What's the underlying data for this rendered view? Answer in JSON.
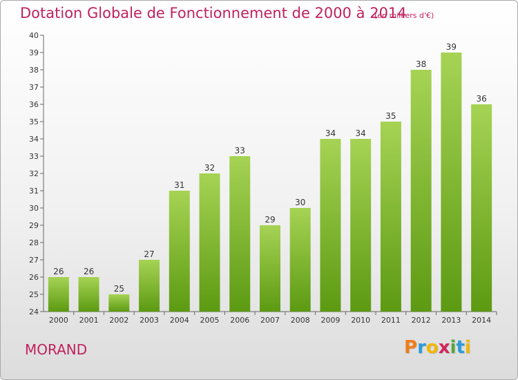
{
  "header": {
    "title": "Dotation Globale de Fonctionnement de 2000 à 2014",
    "subtitle": "(en milliers d'€)"
  },
  "footer": {
    "commune": "MORAND",
    "brand": [
      "P",
      "r",
      "o",
      "x",
      "i",
      "t",
      "i"
    ]
  },
  "colors": {
    "accent": "#c0215e",
    "bar_light": "#a6d354",
    "bar_dark": "#5c9a12",
    "brand": [
      "#ef7d1a",
      "#2b9bd8",
      "#f2b701",
      "#d4245d",
      "#56a83a",
      "#2b9bd8",
      "#f2b701"
    ]
  },
  "chart_data": {
    "type": "bar",
    "categories": [
      "2000",
      "2001",
      "2002",
      "2003",
      "2004",
      "2005",
      "2006",
      "2007",
      "2008",
      "2009",
      "2010",
      "2011",
      "2012",
      "2013",
      "2014"
    ],
    "values": [
      26,
      26,
      25,
      27,
      31,
      32,
      33,
      29,
      30,
      34,
      34,
      35,
      38,
      39,
      36
    ],
    "ylim": [
      24,
      40
    ],
    "yticks": [
      24,
      25,
      26,
      27,
      28,
      29,
      30,
      31,
      32,
      33,
      34,
      35,
      36,
      37,
      38,
      39,
      40
    ],
    "grid": false,
    "data_labels": true
  }
}
